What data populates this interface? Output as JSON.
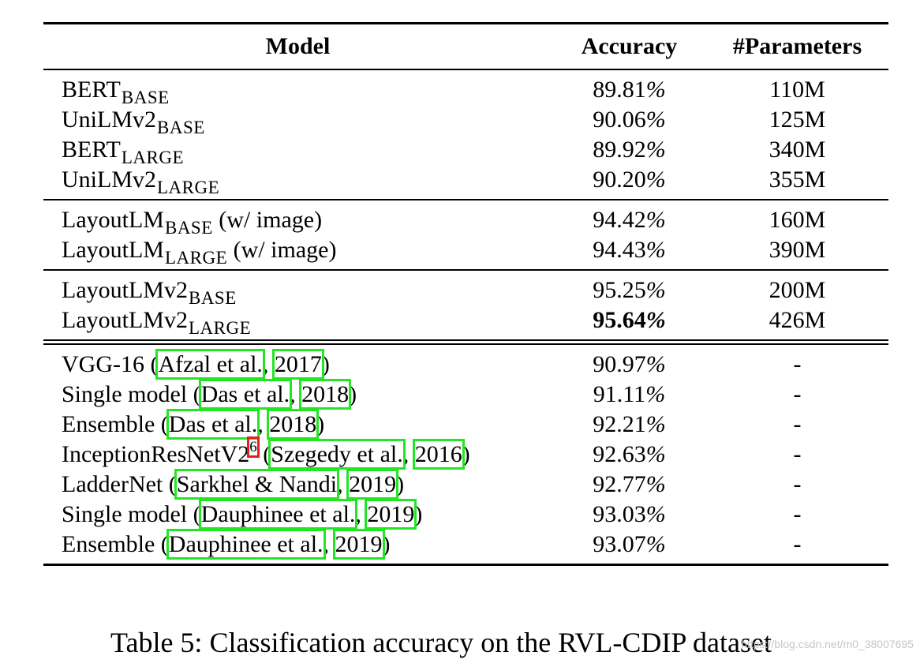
{
  "table": {
    "headers": {
      "model": "Model",
      "accuracy": "Accuracy",
      "params": "#Parameters"
    },
    "group1": [
      {
        "name": "BERT",
        "sub": "BASE",
        "acc_num": "89.81",
        "acc_pct": "%",
        "params": "110M"
      },
      {
        "name": "UniLMv2",
        "sub": "BASE",
        "acc_num": "90.06",
        "acc_pct": "%",
        "params": "125M"
      },
      {
        "name": "BERT",
        "sub": "LARGE",
        "acc_num": "89.92",
        "acc_pct": "%",
        "params": "340M"
      },
      {
        "name": "UniLMv2",
        "sub": "LARGE",
        "acc_num": "90.20",
        "acc_pct": "%",
        "params": "355M"
      }
    ],
    "group2": [
      {
        "name": "LayoutLM",
        "sub": "BASE",
        "suffix": " (w/ image)",
        "acc_num": "94.42",
        "acc_pct": "%",
        "params": "160M"
      },
      {
        "name": "LayoutLM",
        "sub": "LARGE",
        "suffix": " (w/ image)",
        "acc_num": "94.43",
        "acc_pct": "%",
        "params": "390M"
      }
    ],
    "group3": [
      {
        "name": "LayoutLMv2",
        "sub": "BASE",
        "acc_num": "95.25",
        "acc_pct": "%",
        "params": "200M"
      },
      {
        "name": "LayoutLMv2",
        "sub": "LARGE",
        "acc_num": "95.64",
        "acc_pct": "%",
        "params": "426M"
      }
    ],
    "group4": [
      {
        "pre": "VGG-16 (",
        "author": "Afzal et al.",
        "mid": ", ",
        "year": "2017",
        "post": ")",
        "acc_num": "90.97",
        "acc_pct": "%",
        "params": "-"
      },
      {
        "pre": "Single model (",
        "author": "Das et al.",
        "mid": ", ",
        "year": "2018",
        "post": ")",
        "acc_num": "91.11",
        "acc_pct": "%",
        "params": "-"
      },
      {
        "pre": "Ensemble (",
        "author": "Das et al.",
        "mid": ", ",
        "year": "2018",
        "post": ")",
        "acc_num": "92.21",
        "acc_pct": "%",
        "params": "-"
      },
      {
        "pre": "InceptionResNetV2",
        "footnote": "6",
        "pre2": " (",
        "author": "Szegedy et al.",
        "mid": ", ",
        "year": "2016",
        "post": ")",
        "acc_num": "92.63",
        "acc_pct": "%",
        "params": "-"
      },
      {
        "pre": "LadderNet (",
        "author": "Sarkhel & Nandi",
        "mid": ", ",
        "year": "2019",
        "post": ")",
        "acc_num": "92.77",
        "acc_pct": "%",
        "params": "-"
      },
      {
        "pre": "Single model (",
        "author": "Dauphinee et al.",
        "mid": ", ",
        "year": "2019",
        "post": ")",
        "acc_num": "93.03",
        "acc_pct": "%",
        "params": "-"
      },
      {
        "pre": "Ensemble (",
        "author": "Dauphinee et al.",
        "mid": ", ",
        "year": "2019",
        "post": ")",
        "acc_num": "93.07",
        "acc_pct": "%",
        "params": "-"
      }
    ]
  },
  "caption": "Table 5: Classification accuracy on the RVL-CDIP dataset",
  "watermark": "https://blog.csdn.net/m0_38007695",
  "colors": {
    "citation_box": "#22e622",
    "footnote_box": "#e61e1e"
  }
}
